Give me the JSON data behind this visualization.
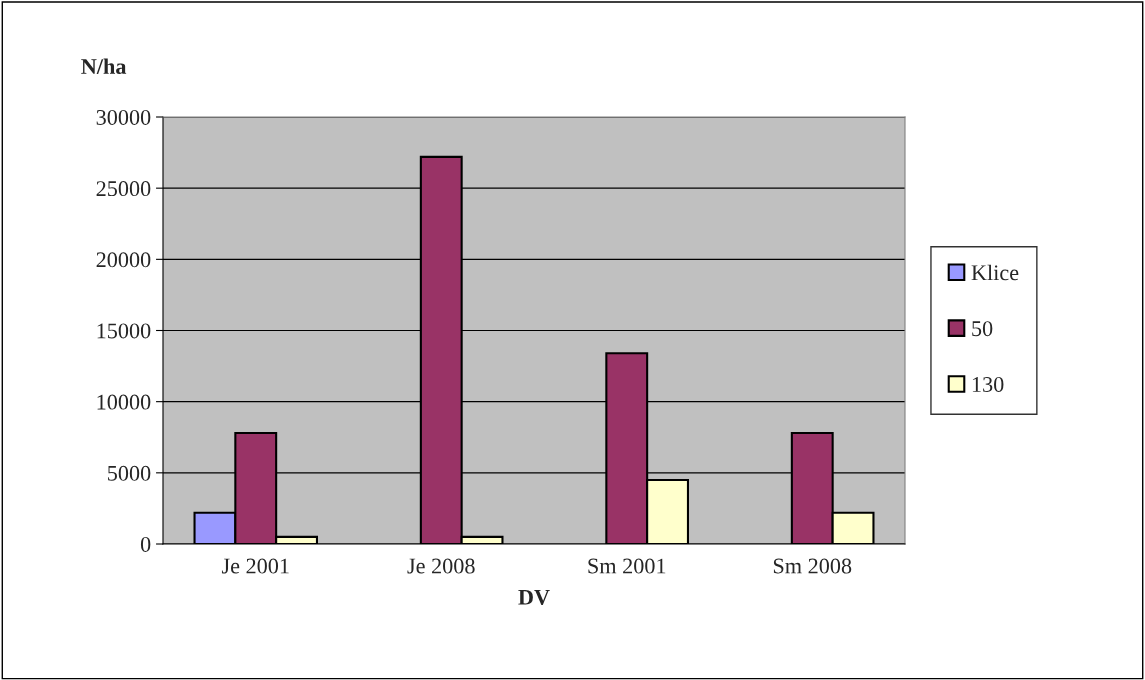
{
  "chart_data": {
    "type": "bar",
    "ylabel": "N/ha",
    "xlabel": "DV",
    "categories": [
      "Je 2001",
      "Je 2008",
      "Sm 2001",
      "Sm 2008"
    ],
    "series": [
      {
        "name": "Klice",
        "color": "#9999ff",
        "values": [
          2200,
          null,
          null,
          null
        ]
      },
      {
        "name": "50",
        "color": "#993366",
        "values": [
          7800,
          27200,
          13400,
          7800
        ]
      },
      {
        "name": "130",
        "color": "#ffffcc",
        "values": [
          500,
          500,
          4500,
          2200
        ]
      }
    ],
    "ylim": [
      0,
      30000
    ],
    "yticks": [
      0,
      5000,
      10000,
      15000,
      20000,
      25000,
      30000
    ],
    "grid": "y",
    "legend": "right"
  }
}
